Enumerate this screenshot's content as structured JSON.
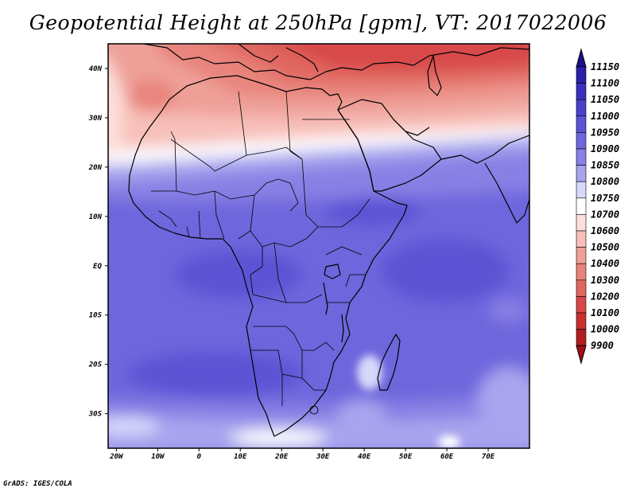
{
  "title": "Geopotential Height at 250hPa [gpm], VT: 2017022006",
  "credit": "GrADS: IGES/COLA",
  "map": {
    "lon_range": [
      -22,
      80
    ],
    "lat_range": [
      -37,
      45
    ],
    "lon_ticks": [
      {
        "value": -20,
        "label": "20W"
      },
      {
        "value": -10,
        "label": "10W"
      },
      {
        "value": 0,
        "label": "0"
      },
      {
        "value": 10,
        "label": "10E"
      },
      {
        "value": 20,
        "label": "20E"
      },
      {
        "value": 30,
        "label": "30E"
      },
      {
        "value": 40,
        "label": "40E"
      },
      {
        "value": 50,
        "label": "50E"
      },
      {
        "value": 60,
        "label": "60E"
      },
      {
        "value": 70,
        "label": "70E"
      }
    ],
    "lat_ticks": [
      {
        "value": 40,
        "label": "40N"
      },
      {
        "value": 30,
        "label": "30N"
      },
      {
        "value": 20,
        "label": "20N"
      },
      {
        "value": 10,
        "label": "10N"
      },
      {
        "value": 0,
        "label": "EQ"
      },
      {
        "value": -10,
        "label": "10S"
      },
      {
        "value": -20,
        "label": "20S"
      },
      {
        "value": -30,
        "label": "30S"
      }
    ]
  },
  "colorbar": {
    "levels": [
      {
        "label": "11150",
        "color": "#1a0f8a"
      },
      {
        "label": "11100",
        "color": "#2a20a8"
      },
      {
        "label": "11050",
        "color": "#3a30c0"
      },
      {
        "label": "11000",
        "color": "#4a40cc"
      },
      {
        "label": "10950",
        "color": "#5c52d4"
      },
      {
        "label": "10900",
        "color": "#6e66dc"
      },
      {
        "label": "10850",
        "color": "#8880e4"
      },
      {
        "label": "10800",
        "color": "#a8a4ee"
      },
      {
        "label": "10750",
        "color": "#d8d8fa"
      },
      {
        "label": "10700",
        "color": "#ffffff"
      },
      {
        "label": "10600",
        "color": "#fde0dc"
      },
      {
        "label": "10500",
        "color": "#f8c0ba"
      },
      {
        "label": "10400",
        "color": "#eea098"
      },
      {
        "label": "10300",
        "color": "#e8847c"
      },
      {
        "label": "10200",
        "color": "#e06860"
      },
      {
        "label": "10100",
        "color": "#d84848"
      },
      {
        "label": "10000",
        "color": "#c83030"
      },
      {
        "label": "9900",
        "color": "#b01e22"
      }
    ],
    "top_color": "#1a0f8a",
    "bottom_color": "#a01018"
  }
}
